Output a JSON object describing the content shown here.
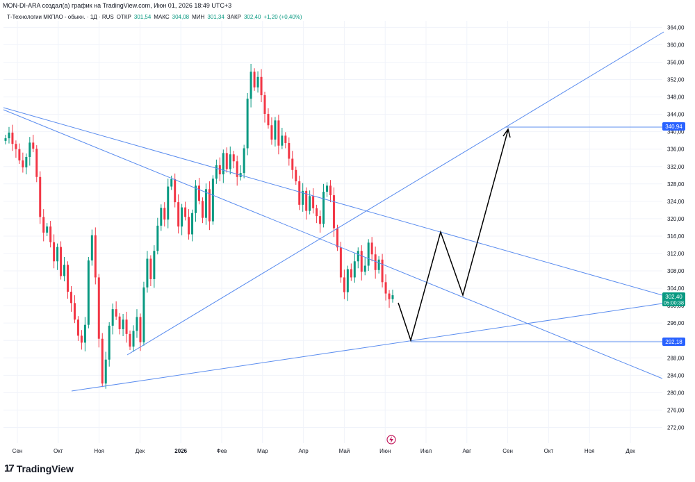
{
  "header": {
    "attribution": "MON-DI-ARA создал(а) график на TradingView.com, Июн 01, 2026 18:49 UTC+3",
    "symbol": "Т-Технологии МКПАО - обыкн. · 1Д · RUS",
    "open_label": "ОТКР",
    "open_value": "301,54",
    "high_label": "МАКС",
    "high_value": "304,08",
    "low_label": "МИН",
    "low_value": "301,34",
    "close_label": "ЗАКР",
    "close_value": "302,40",
    "change": "+1,20 (+0,40%)"
  },
  "branding": {
    "logo_text": "TradingView",
    "logo_mark": "17"
  },
  "colors": {
    "up": "#089981",
    "down": "#f23645",
    "drawing": "#5b8def",
    "projection": "#000000",
    "grid": "#f0f3fa"
  },
  "chart_data": {
    "type": "candlestick",
    "title": "Т-Технологии МКПАО - обыкн.",
    "interval": "1Д",
    "x_labels": [
      "Сен",
      "Окт",
      "Ноя",
      "Дек",
      "2026",
      "Фев",
      "Мар",
      "Апр",
      "Май",
      "Июн",
      "Июл",
      "Авг",
      "Сен",
      "Окт",
      "Ноя",
      "Дек"
    ],
    "y_ticks": [
      "272,00",
      "276,00",
      "280,00",
      "284,00",
      "288,00",
      "292,00",
      "296,00",
      "300,00",
      "304,00",
      "308,00",
      "312,00",
      "316,00",
      "320,00",
      "324,00",
      "328,00",
      "332,00",
      "336,00",
      "340,00",
      "344,00",
      "348,00",
      "352,00",
      "356,00",
      "360,00",
      "364,00"
    ],
    "ylim": [
      268.4,
      365.5
    ],
    "close_series": [
      338.5,
      339.8,
      337.2,
      336.0,
      333.4,
      331.8,
      334.2,
      337.5,
      336.1,
      329.6,
      320.4,
      316.8,
      318.2,
      314.6,
      310.2,
      313.5,
      306.8,
      309.4,
      303.2,
      300.6,
      296.8,
      293.1,
      291.5,
      295.6,
      310.4,
      316.2,
      306.5,
      292.4,
      282.1,
      287.6,
      295.4,
      299.2,
      297.5,
      294.6,
      296.8,
      293.5,
      290.6,
      294.2,
      297.4,
      291.6,
      304.2,
      310.8,
      306.1,
      312.6,
      318.4,
      322.5,
      319.8,
      327.4,
      329.1,
      323.8,
      318.2,
      322.6,
      320.4,
      316.4,
      321.3,
      327.6,
      324.1,
      320.2,
      326.8,
      319.4,
      329.2,
      332.3,
      330.2,
      335.1,
      331.4,
      334.8,
      333.2,
      329.6,
      330.5,
      336.2,
      347.6,
      353.8,
      350.2,
      352.6,
      348.4,
      344.1,
      341.5,
      338.2,
      342.6,
      336.8,
      339.1,
      337.4,
      333.8,
      331.2,
      328.6,
      323.2,
      326.4,
      321.8,
      325.2,
      322.4,
      320.6,
      318.8,
      326.2,
      327.6,
      325.4,
      317.8,
      313.4,
      306.5,
      303.1,
      308.4,
      306.5,
      310.2,
      312.6,
      307.8,
      309.2,
      314.5,
      311.8,
      308.2,
      310.6,
      305.4,
      302.8,
      301.5,
      302.4
    ],
    "annotations": [
      {
        "type": "horizontal_line",
        "value": 340.94,
        "label": "340,94"
      },
      {
        "type": "horizontal_line",
        "value": 292.18,
        "label": "292,18"
      },
      {
        "type": "price_marker",
        "value": 302.4,
        "label": "302,40",
        "countdown": "05:00:38"
      }
    ]
  }
}
